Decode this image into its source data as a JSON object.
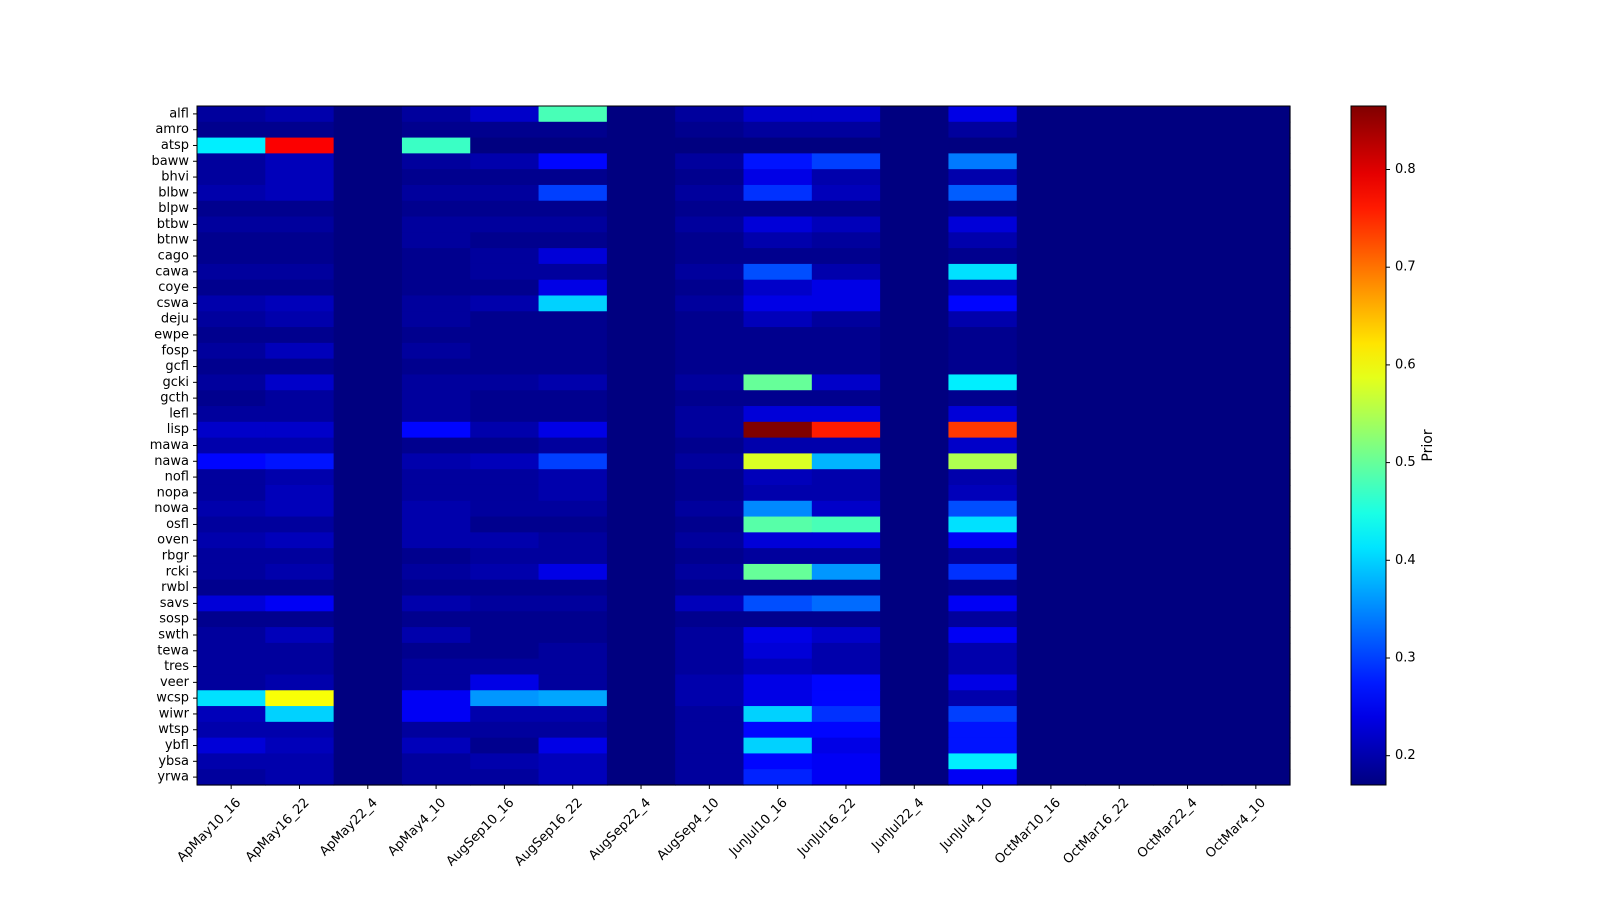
{
  "chart_data": {
    "type": "heatmap",
    "colormap": "jet",
    "vmin": 0.17,
    "vmax": 0.865,
    "x_categories": [
      "ApMay10_16",
      "ApMay16_22",
      "ApMay22_4",
      "ApMay4_10",
      "AugSep10_16",
      "AugSep16_22",
      "AugSep22_4",
      "AugSep4_10",
      "JunJul10_16",
      "JunJul16_22",
      "JunJul22_4",
      "JunJul4_10",
      "OctMar10_16",
      "OctMar16_22",
      "OctMar22_4",
      "OctMar4_10"
    ],
    "y_categories": [
      "alfl",
      "amro",
      "atsp",
      "baww",
      "bhvi",
      "blbw",
      "blpw",
      "btbw",
      "btnw",
      "cago",
      "cawa",
      "coye",
      "cswa",
      "deju",
      "ewpe",
      "fosp",
      "gcfl",
      "gcki",
      "gcth",
      "lefl",
      "lisp",
      "mawa",
      "nawa",
      "nofl",
      "nopa",
      "nowa",
      "osfl",
      "oven",
      "rbgr",
      "rcki",
      "rwbl",
      "savs",
      "sosp",
      "swth",
      "tewa",
      "tres",
      "veer",
      "wcsp",
      "wiwr",
      "wtsp",
      "ybfl",
      "ybsa",
      "yrwa"
    ],
    "values": [
      [
        0.19,
        0.2,
        0.17,
        0.19,
        0.22,
        0.48,
        0.17,
        0.19,
        0.22,
        0.22,
        0.17,
        0.24,
        0.17,
        0.17,
        0.17,
        0.17
      ],
      [
        0.18,
        0.18,
        0.17,
        0.18,
        0.18,
        0.18,
        0.17,
        0.18,
        0.19,
        0.19,
        0.17,
        0.19,
        0.17,
        0.17,
        0.17,
        0.17
      ],
      [
        0.42,
        0.78,
        0.17,
        0.47,
        0.17,
        0.17,
        0.17,
        0.17,
        0.17,
        0.17,
        0.17,
        0.17,
        0.17,
        0.17,
        0.17,
        0.17
      ],
      [
        0.19,
        0.21,
        0.17,
        0.19,
        0.2,
        0.26,
        0.17,
        0.19,
        0.27,
        0.3,
        0.17,
        0.34,
        0.17,
        0.17,
        0.17,
        0.17
      ],
      [
        0.19,
        0.21,
        0.17,
        0.18,
        0.18,
        0.18,
        0.17,
        0.18,
        0.24,
        0.2,
        0.17,
        0.2,
        0.17,
        0.17,
        0.17,
        0.17
      ],
      [
        0.2,
        0.21,
        0.17,
        0.19,
        0.19,
        0.3,
        0.17,
        0.19,
        0.29,
        0.21,
        0.17,
        0.32,
        0.17,
        0.17,
        0.17,
        0.17
      ],
      [
        0.18,
        0.18,
        0.17,
        0.18,
        0.18,
        0.18,
        0.17,
        0.18,
        0.18,
        0.18,
        0.17,
        0.18,
        0.17,
        0.17,
        0.17,
        0.17
      ],
      [
        0.19,
        0.19,
        0.17,
        0.19,
        0.19,
        0.19,
        0.17,
        0.19,
        0.23,
        0.21,
        0.17,
        0.23,
        0.17,
        0.17,
        0.17,
        0.17
      ],
      [
        0.18,
        0.18,
        0.17,
        0.19,
        0.18,
        0.18,
        0.17,
        0.18,
        0.2,
        0.19,
        0.17,
        0.2,
        0.17,
        0.17,
        0.17,
        0.17
      ],
      [
        0.18,
        0.18,
        0.17,
        0.18,
        0.19,
        0.23,
        0.17,
        0.18,
        0.18,
        0.18,
        0.17,
        0.18,
        0.17,
        0.17,
        0.17,
        0.17
      ],
      [
        0.19,
        0.19,
        0.17,
        0.18,
        0.19,
        0.19,
        0.17,
        0.19,
        0.31,
        0.2,
        0.17,
        0.41,
        0.17,
        0.17,
        0.17,
        0.17
      ],
      [
        0.18,
        0.18,
        0.17,
        0.18,
        0.18,
        0.24,
        0.17,
        0.18,
        0.22,
        0.24,
        0.17,
        0.21,
        0.17,
        0.17,
        0.17,
        0.17
      ],
      [
        0.2,
        0.21,
        0.17,
        0.19,
        0.2,
        0.4,
        0.17,
        0.19,
        0.24,
        0.24,
        0.17,
        0.26,
        0.17,
        0.17,
        0.17,
        0.17
      ],
      [
        0.19,
        0.2,
        0.17,
        0.19,
        0.18,
        0.18,
        0.17,
        0.18,
        0.21,
        0.19,
        0.17,
        0.2,
        0.17,
        0.17,
        0.17,
        0.17
      ],
      [
        0.18,
        0.18,
        0.17,
        0.18,
        0.18,
        0.18,
        0.17,
        0.18,
        0.18,
        0.18,
        0.17,
        0.18,
        0.17,
        0.17,
        0.17,
        0.17
      ],
      [
        0.19,
        0.21,
        0.17,
        0.19,
        0.18,
        0.18,
        0.17,
        0.18,
        0.18,
        0.18,
        0.17,
        0.18,
        0.17,
        0.17,
        0.17,
        0.17
      ],
      [
        0.18,
        0.18,
        0.17,
        0.18,
        0.18,
        0.18,
        0.17,
        0.18,
        0.18,
        0.18,
        0.17,
        0.18,
        0.17,
        0.17,
        0.17,
        0.17
      ],
      [
        0.19,
        0.22,
        0.17,
        0.19,
        0.19,
        0.2,
        0.17,
        0.19,
        0.5,
        0.22,
        0.17,
        0.42,
        0.17,
        0.17,
        0.17,
        0.17
      ],
      [
        0.18,
        0.19,
        0.17,
        0.19,
        0.18,
        0.18,
        0.17,
        0.18,
        0.18,
        0.18,
        0.17,
        0.18,
        0.17,
        0.17,
        0.17,
        0.17
      ],
      [
        0.19,
        0.19,
        0.17,
        0.19,
        0.18,
        0.18,
        0.17,
        0.19,
        0.23,
        0.23,
        0.17,
        0.23,
        0.17,
        0.17,
        0.17,
        0.17
      ],
      [
        0.22,
        0.22,
        0.17,
        0.26,
        0.2,
        0.24,
        0.17,
        0.19,
        0.865,
        0.76,
        0.17,
        0.74,
        0.17,
        0.17,
        0.17,
        0.17
      ],
      [
        0.2,
        0.2,
        0.17,
        0.18,
        0.18,
        0.19,
        0.17,
        0.18,
        0.2,
        0.2,
        0.17,
        0.22,
        0.17,
        0.17,
        0.17,
        0.17
      ],
      [
        0.26,
        0.27,
        0.17,
        0.2,
        0.21,
        0.3,
        0.17,
        0.19,
        0.58,
        0.38,
        0.17,
        0.55,
        0.17,
        0.17,
        0.17,
        0.17
      ],
      [
        0.19,
        0.2,
        0.17,
        0.19,
        0.19,
        0.2,
        0.17,
        0.18,
        0.21,
        0.2,
        0.17,
        0.2,
        0.17,
        0.17,
        0.17,
        0.17
      ],
      [
        0.19,
        0.21,
        0.17,
        0.19,
        0.19,
        0.2,
        0.17,
        0.18,
        0.2,
        0.2,
        0.17,
        0.21,
        0.17,
        0.17,
        0.17,
        0.17
      ],
      [
        0.2,
        0.21,
        0.17,
        0.2,
        0.19,
        0.19,
        0.17,
        0.19,
        0.35,
        0.22,
        0.17,
        0.31,
        0.17,
        0.17,
        0.17,
        0.17
      ],
      [
        0.19,
        0.19,
        0.17,
        0.2,
        0.18,
        0.18,
        0.17,
        0.18,
        0.49,
        0.48,
        0.17,
        0.41,
        0.17,
        0.17,
        0.17,
        0.17
      ],
      [
        0.2,
        0.21,
        0.17,
        0.2,
        0.2,
        0.19,
        0.17,
        0.19,
        0.23,
        0.23,
        0.17,
        0.25,
        0.17,
        0.17,
        0.17,
        0.17
      ],
      [
        0.19,
        0.19,
        0.17,
        0.18,
        0.19,
        0.19,
        0.17,
        0.18,
        0.19,
        0.19,
        0.17,
        0.19,
        0.17,
        0.17,
        0.17,
        0.17
      ],
      [
        0.19,
        0.2,
        0.17,
        0.19,
        0.2,
        0.24,
        0.17,
        0.19,
        0.5,
        0.36,
        0.17,
        0.29,
        0.17,
        0.17,
        0.17,
        0.17
      ],
      [
        0.18,
        0.18,
        0.17,
        0.18,
        0.18,
        0.18,
        0.17,
        0.18,
        0.18,
        0.18,
        0.17,
        0.18,
        0.17,
        0.17,
        0.17,
        0.17
      ],
      [
        0.23,
        0.25,
        0.17,
        0.2,
        0.19,
        0.19,
        0.17,
        0.21,
        0.31,
        0.33,
        0.17,
        0.25,
        0.17,
        0.17,
        0.17,
        0.17
      ],
      [
        0.18,
        0.18,
        0.17,
        0.18,
        0.18,
        0.18,
        0.17,
        0.18,
        0.18,
        0.18,
        0.17,
        0.19,
        0.17,
        0.17,
        0.17,
        0.17
      ],
      [
        0.19,
        0.21,
        0.17,
        0.2,
        0.18,
        0.18,
        0.17,
        0.19,
        0.24,
        0.22,
        0.17,
        0.25,
        0.17,
        0.17,
        0.17,
        0.17
      ],
      [
        0.19,
        0.19,
        0.17,
        0.18,
        0.18,
        0.19,
        0.17,
        0.19,
        0.23,
        0.2,
        0.17,
        0.2,
        0.17,
        0.17,
        0.17,
        0.17
      ],
      [
        0.19,
        0.19,
        0.17,
        0.19,
        0.19,
        0.19,
        0.17,
        0.19,
        0.21,
        0.2,
        0.17,
        0.2,
        0.17,
        0.17,
        0.17,
        0.17
      ],
      [
        0.19,
        0.2,
        0.17,
        0.19,
        0.24,
        0.19,
        0.17,
        0.2,
        0.24,
        0.26,
        0.17,
        0.24,
        0.17,
        0.17,
        0.17,
        0.17
      ],
      [
        0.41,
        0.6,
        0.17,
        0.25,
        0.36,
        0.37,
        0.17,
        0.2,
        0.24,
        0.26,
        0.17,
        0.2,
        0.17,
        0.17,
        0.17,
        0.17
      ],
      [
        0.21,
        0.4,
        0.17,
        0.25,
        0.2,
        0.2,
        0.17,
        0.19,
        0.4,
        0.29,
        0.17,
        0.3,
        0.17,
        0.17,
        0.17,
        0.17
      ],
      [
        0.2,
        0.2,
        0.17,
        0.19,
        0.19,
        0.19,
        0.17,
        0.19,
        0.26,
        0.26,
        0.17,
        0.27,
        0.17,
        0.17,
        0.17,
        0.17
      ],
      [
        0.23,
        0.21,
        0.17,
        0.21,
        0.18,
        0.24,
        0.17,
        0.19,
        0.4,
        0.24,
        0.17,
        0.27,
        0.17,
        0.17,
        0.17,
        0.17
      ],
      [
        0.2,
        0.2,
        0.17,
        0.19,
        0.2,
        0.21,
        0.17,
        0.19,
        0.26,
        0.25,
        0.17,
        0.42,
        0.17,
        0.17,
        0.17,
        0.17
      ],
      [
        0.19,
        0.2,
        0.17,
        0.19,
        0.19,
        0.21,
        0.17,
        0.19,
        0.28,
        0.25,
        0.17,
        0.25,
        0.17,
        0.17,
        0.17,
        0.17
      ]
    ],
    "colorbar": {
      "label": "Prior",
      "ticks": [
        "0.2",
        "0.3",
        "0.4",
        "0.5",
        "0.6",
        "0.7",
        "0.8"
      ]
    }
  }
}
